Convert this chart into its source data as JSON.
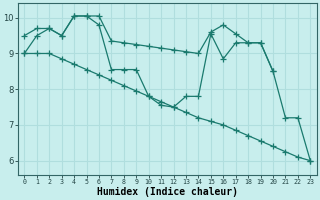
{
  "xlabel": "Humidex (Indice chaleur)",
  "bg_color": "#c8eeed",
  "grid_color": "#b0dede",
  "line_color": "#1a7a6e",
  "line1": {
    "x": [
      0,
      1,
      2,
      3,
      4,
      5,
      6,
      7,
      8,
      9,
      10,
      11,
      12,
      13,
      14,
      15,
      16,
      17,
      18,
      19,
      20
    ],
    "y": [
      9.5,
      9.7,
      9.7,
      9.5,
      10.05,
      10.05,
      10.05,
      9.35,
      9.3,
      9.25,
      9.2,
      9.15,
      9.1,
      9.05,
      9.0,
      9.6,
      9.8,
      9.55,
      9.3,
      9.3,
      8.5
    ]
  },
  "line2": {
    "x": [
      0,
      1,
      2,
      3,
      4,
      5,
      6,
      7,
      8,
      9,
      10,
      11,
      12,
      13,
      14,
      15,
      16,
      17,
      18,
      19,
      20,
      21,
      22,
      23
    ],
    "y": [
      9.0,
      9.5,
      9.7,
      9.5,
      10.05,
      10.05,
      9.8,
      8.55,
      8.55,
      8.55,
      7.8,
      7.55,
      7.5,
      7.8,
      7.8,
      9.55,
      8.85,
      9.3,
      9.3,
      9.3,
      8.5,
      7.2,
      7.2,
      6.0
    ]
  },
  "line3": {
    "x": [
      0,
      1,
      2,
      3,
      4,
      5,
      6,
      7,
      8,
      9,
      10,
      11,
      12,
      13,
      14,
      15,
      16,
      17,
      18,
      19,
      20,
      21,
      22,
      23
    ],
    "y": [
      9.0,
      9.0,
      9.0,
      8.85,
      8.7,
      8.55,
      8.4,
      8.25,
      8.1,
      7.95,
      7.8,
      7.65,
      7.5,
      7.35,
      7.2,
      7.1,
      7.0,
      6.85,
      6.7,
      6.55,
      6.4,
      6.25,
      6.1,
      6.0
    ]
  },
  "ylim": [
    5.6,
    10.4
  ],
  "xlim": [
    -0.5,
    23.5
  ],
  "yticks": [
    6,
    7,
    8,
    9,
    10
  ],
  "xticks": [
    0,
    1,
    2,
    3,
    4,
    5,
    6,
    7,
    8,
    9,
    10,
    11,
    12,
    13,
    14,
    15,
    16,
    17,
    18,
    19,
    20,
    21,
    22,
    23
  ]
}
